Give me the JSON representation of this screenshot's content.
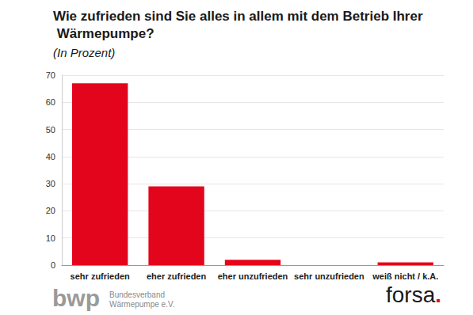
{
  "chart_data": {
    "type": "bar",
    "title": "Wie zufrieden sind Sie alles in allem mit dem Betrieb Ihrer Wärmepumpe?",
    "subtitle": "(In Prozent)",
    "categories": [
      "sehr zufrieden",
      "eher zufrieden",
      "eher unzufrieden",
      "sehr unzufrieden",
      "weiß nicht / k.A."
    ],
    "values": [
      67,
      29,
      2,
      0,
      1
    ],
    "color": "#e3051b",
    "ylim": [
      0,
      70
    ],
    "yticks": [
      0,
      10,
      20,
      30,
      40,
      50,
      60,
      70
    ],
    "grid": true,
    "annotations": [
      "bwp",
      "Bundesverband",
      "Wärmepumpe e.V.",
      "forsa."
    ]
  }
}
